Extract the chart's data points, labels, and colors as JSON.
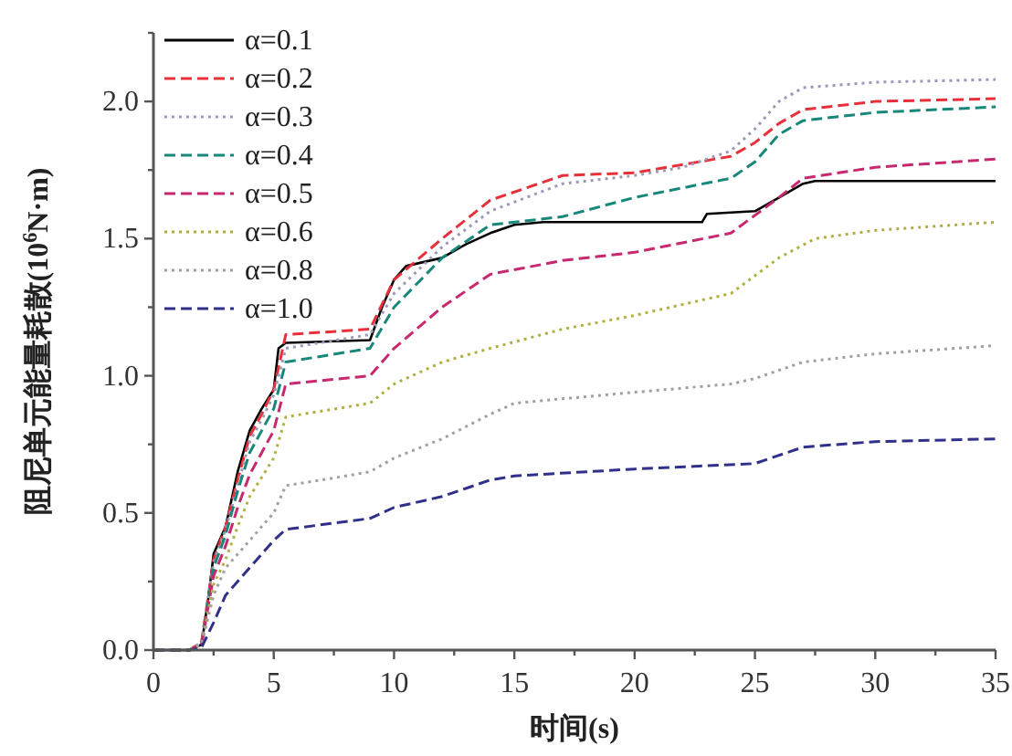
{
  "chart_data": {
    "type": "line",
    "xlabel": "时间(s)",
    "ylabel": "阻尼单元能量耗散(10$^{6}$N·m)",
    "xlim": [
      0,
      35
    ],
    "ylim": [
      0,
      2.25
    ],
    "xticks": [
      0,
      {
        "value": 2.5,
        "label": null
      },
      5,
      {
        "value": 7.5,
        "label": null
      },
      10,
      {
        "value": 12.5,
        "label": null
      },
      15,
      {
        "value": 17.5,
        "label": null
      },
      20,
      {
        "value": 22.5,
        "label": null
      },
      25,
      {
        "value": 27.5,
        "label": null
      },
      30,
      {
        "value": 32.5,
        "label": null
      },
      35
    ],
    "yticks": [
      {
        "value": 0,
        "label": "0.0"
      },
      {
        "value": 0.25,
        "label": null
      },
      {
        "value": 0.5,
        "label": "0.5"
      },
      {
        "value": 0.75,
        "label": null
      },
      {
        "value": 1,
        "label": "1.0"
      },
      {
        "value": 1.25,
        "label": null
      },
      {
        "value": 1.5,
        "label": "1.5"
      },
      {
        "value": 1.75,
        "label": null
      },
      {
        "value": 2,
        "label": "2.0"
      },
      {
        "value": 2.25,
        "label": null
      }
    ],
    "legend": "top left",
    "grid": false,
    "series": [
      {
        "name": "α=0.1",
        "color": "#000000",
        "line_style": "solid",
        "x": [
          0,
          1.5,
          2,
          2.3,
          2.5,
          3,
          3.5,
          4,
          4.5,
          5,
          5.2,
          5.5,
          9,
          9.5,
          10,
          10.5,
          12,
          13,
          14,
          15,
          16.2,
          22.8,
          23,
          25,
          26,
          27,
          27.5,
          35
        ],
        "values": [
          0,
          0,
          0.02,
          0.2,
          0.35,
          0.45,
          0.65,
          0.8,
          0.88,
          0.95,
          1.1,
          1.12,
          1.13,
          1.25,
          1.35,
          1.4,
          1.43,
          1.48,
          1.52,
          1.55,
          1.56,
          1.56,
          1.59,
          1.6,
          1.65,
          1.7,
          1.71,
          1.71
        ]
      },
      {
        "name": "α=0.2",
        "color": "#e8303a",
        "line_style": "dashed",
        "x": [
          0,
          1.5,
          2,
          2.5,
          3,
          3.5,
          4,
          4.5,
          5,
          5.5,
          9,
          10,
          12,
          14,
          17,
          20,
          22,
          24,
          25,
          26,
          27,
          30,
          35
        ],
        "values": [
          0,
          0,
          0.03,
          0.33,
          0.45,
          0.62,
          0.78,
          0.86,
          0.95,
          1.15,
          1.17,
          1.35,
          1.5,
          1.64,
          1.73,
          1.74,
          1.77,
          1.8,
          1.85,
          1.92,
          1.97,
          2.0,
          2.01
        ]
      },
      {
        "name": "α=0.3",
        "color": "#9a9ab8",
        "line_style": "dotted",
        "x": [
          0,
          1.5,
          2,
          2.5,
          3,
          3.5,
          4,
          4.5,
          5,
          5.5,
          9,
          10,
          12,
          14,
          17,
          20,
          22,
          24,
          25,
          26,
          27,
          30,
          35
        ],
        "values": [
          0,
          0,
          0.03,
          0.32,
          0.44,
          0.6,
          0.76,
          0.84,
          0.93,
          1.1,
          1.15,
          1.3,
          1.47,
          1.6,
          1.7,
          1.73,
          1.76,
          1.82,
          1.9,
          2.0,
          2.05,
          2.07,
          2.08
        ]
      },
      {
        "name": "α=0.4",
        "color": "#17877a",
        "line_style": "dashed",
        "x": [
          0,
          1.5,
          2,
          2.5,
          3,
          3.5,
          4,
          4.5,
          5,
          5.5,
          9,
          10,
          12,
          14,
          17,
          20,
          24,
          25,
          26,
          27,
          30,
          35
        ],
        "values": [
          0,
          0,
          0.02,
          0.3,
          0.42,
          0.58,
          0.72,
          0.8,
          0.88,
          1.05,
          1.1,
          1.25,
          1.43,
          1.55,
          1.58,
          1.65,
          1.72,
          1.78,
          1.88,
          1.93,
          1.96,
          1.98
        ]
      },
      {
        "name": "α=0.5",
        "color": "#c8286e",
        "line_style": "dashed",
        "x": [
          0,
          1.5,
          2,
          2.5,
          3,
          3.5,
          4,
          4.5,
          5,
          5.5,
          9,
          10,
          12,
          14,
          17,
          20,
          24,
          26,
          27,
          30,
          35
        ],
        "values": [
          0,
          0,
          0.02,
          0.27,
          0.38,
          0.52,
          0.64,
          0.72,
          0.8,
          0.97,
          1.0,
          1.1,
          1.25,
          1.37,
          1.42,
          1.45,
          1.52,
          1.65,
          1.72,
          1.76,
          1.79
        ]
      },
      {
        "name": "α=0.6",
        "color": "#b0b040",
        "line_style": "dotted",
        "x": [
          0,
          1.5,
          2,
          2.5,
          3,
          3.5,
          4,
          4.5,
          5,
          5.5,
          9,
          10,
          12,
          14,
          17,
          20,
          24,
          26,
          27.5,
          30,
          35
        ],
        "values": [
          0,
          0,
          0.02,
          0.24,
          0.33,
          0.45,
          0.56,
          0.63,
          0.7,
          0.85,
          0.9,
          0.97,
          1.05,
          1.1,
          1.17,
          1.22,
          1.3,
          1.43,
          1.5,
          1.53,
          1.56
        ]
      },
      {
        "name": "α=0.8",
        "color": "#a0a0a0",
        "line_style": "dotted",
        "x": [
          0,
          1.5,
          2,
          2.5,
          3,
          4,
          5,
          5.5,
          7,
          9,
          10,
          12,
          14,
          15,
          20,
          24,
          25,
          27,
          30,
          35
        ],
        "values": [
          0,
          0,
          0.02,
          0.2,
          0.3,
          0.4,
          0.5,
          0.6,
          0.62,
          0.65,
          0.7,
          0.77,
          0.86,
          0.9,
          0.94,
          0.97,
          0.99,
          1.05,
          1.08,
          1.11
        ]
      },
      {
        "name": "α=1.0",
        "color": "#30308a",
        "line_style": "dashed",
        "x": [
          0,
          1.5,
          2,
          2.5,
          3,
          4,
          5,
          5.5,
          9,
          10,
          12,
          14,
          15,
          20,
          25,
          27,
          30,
          35
        ],
        "values": [
          0,
          0,
          0.01,
          0.1,
          0.2,
          0.3,
          0.4,
          0.44,
          0.48,
          0.52,
          0.56,
          0.62,
          0.635,
          0.66,
          0.68,
          0.74,
          0.76,
          0.77
        ]
      }
    ]
  }
}
